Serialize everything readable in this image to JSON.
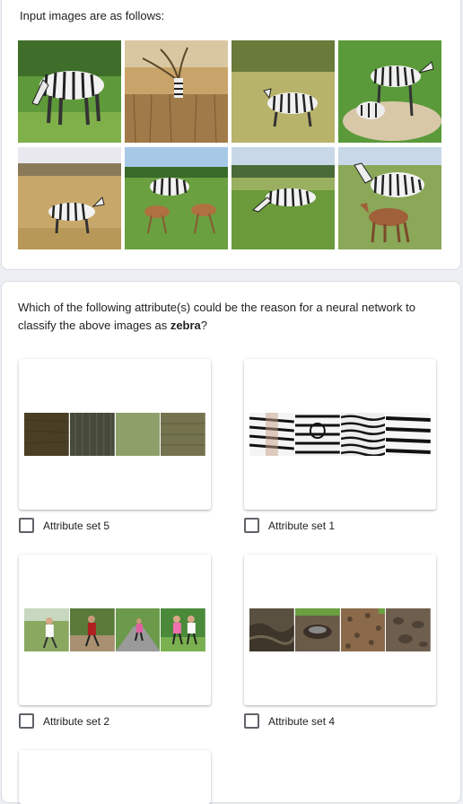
{
  "intro_text": "Input images are as follows:",
  "question": {
    "prefix": "Which of the following attribute(s) could be the reason for a neural network to classify the above images as ",
    "class_name": "zebra",
    "suffix": "?"
  },
  "options": [
    {
      "label": "Attribute set 5",
      "checked": false
    },
    {
      "label": "Attribute set 1",
      "checked": false
    },
    {
      "label": "Attribute set 2",
      "checked": false
    },
    {
      "label": "Attribute set 4",
      "checked": false
    }
  ],
  "colors": {
    "page_bg": "#eceff3",
    "card_bg": "#ffffff",
    "text": "#202124",
    "checkbox_border": "#5f6368"
  }
}
